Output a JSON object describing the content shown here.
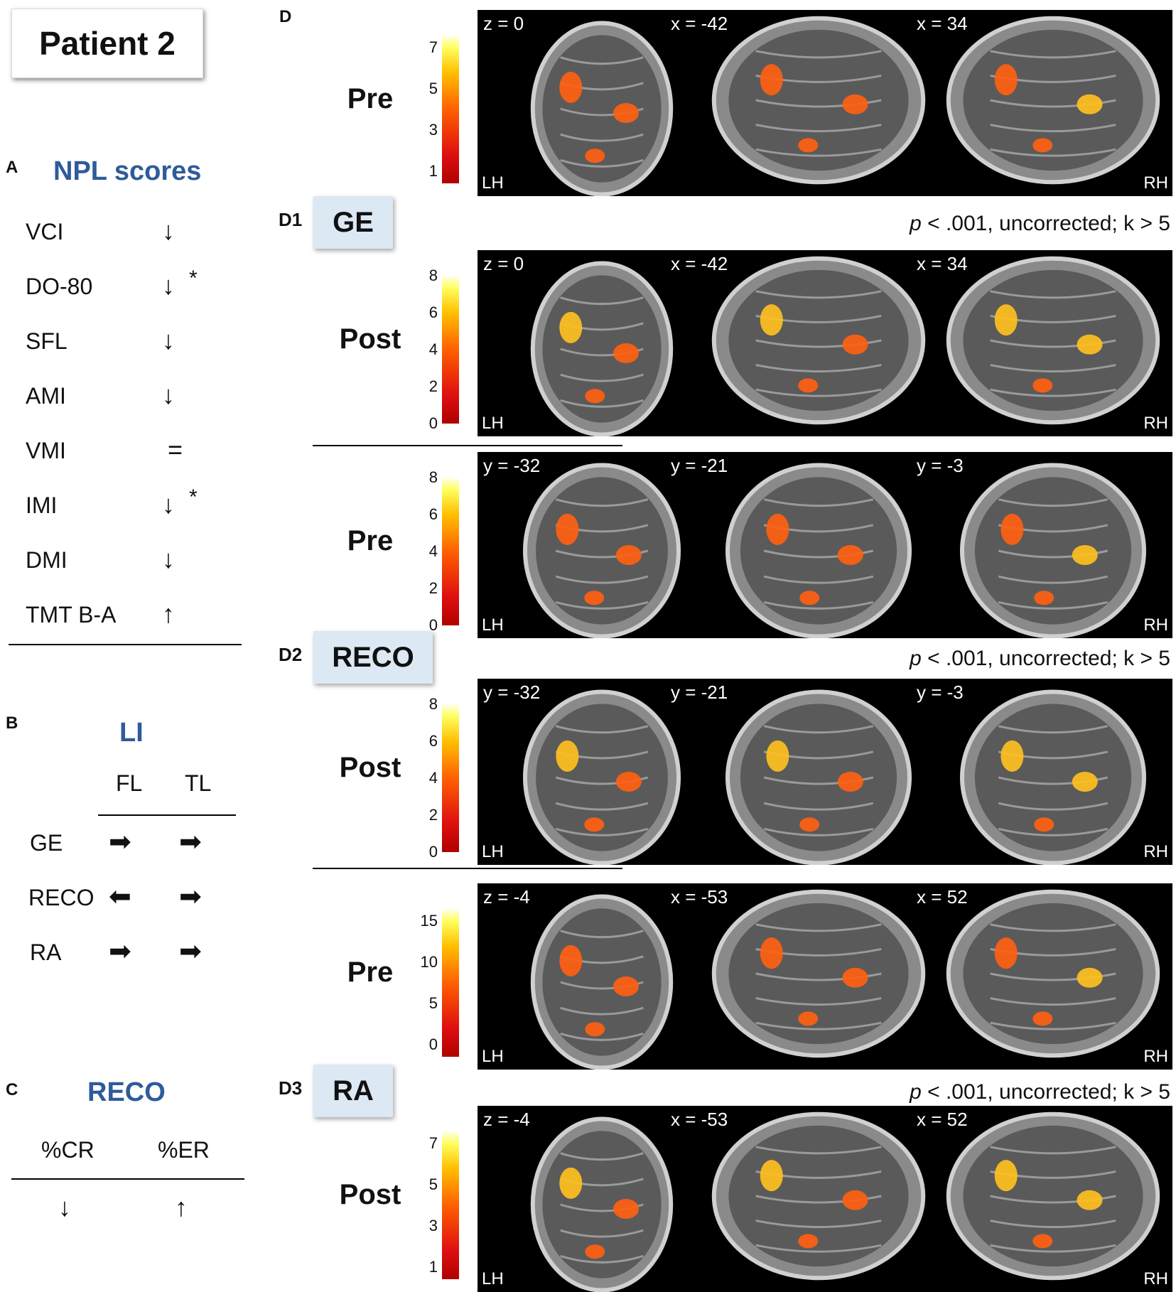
{
  "title": "Patient 2",
  "panelA": {
    "letter": "A",
    "heading": "NPL scores",
    "rows": [
      {
        "label": "VCI",
        "symbol": "↓",
        "mark": ""
      },
      {
        "label": "DO-80",
        "symbol": "↓",
        "mark": "*"
      },
      {
        "label": "SFL",
        "symbol": "↓",
        "mark": ""
      },
      {
        "label": "AMI",
        "symbol": "↓",
        "mark": ""
      },
      {
        "label": "VMI",
        "symbol": "=",
        "mark": ""
      },
      {
        "label": "IMI",
        "symbol": "↓",
        "mark": "*"
      },
      {
        "label": "DMI",
        "symbol": "↓",
        "mark": ""
      },
      {
        "label": "TMT B-A",
        "symbol": "↑",
        "mark": ""
      }
    ]
  },
  "panelB": {
    "letter": "B",
    "heading": "LI",
    "col1": "FL",
    "col2": "TL",
    "rows": [
      {
        "label": "GE",
        "fl": "➡",
        "tl": "➡"
      },
      {
        "label": "RECO",
        "fl": "⬅",
        "tl": "➡"
      },
      {
        "label": "RA",
        "fl": "➡",
        "tl": "➡"
      }
    ]
  },
  "panelC": {
    "letter": "C",
    "heading": "RECO",
    "col1": "%CR",
    "col2": "%ER",
    "val1": "↓",
    "val2": "↑"
  },
  "panelD": {
    "letter": "D",
    "stat_prefix": "p",
    "stat_rest": " < .001, uncorrected; k > 5",
    "hemi_left": "LH",
    "hemi_right": "RH",
    "sections": [
      {
        "letter": "D1",
        "task": "GE",
        "pre": {
          "label": "Pre",
          "ticks": [
            "7",
            "5",
            "3",
            "1"
          ],
          "slices": [
            "z = 0",
            "x = -42",
            "x = 34"
          ]
        },
        "post": {
          "label": "Post",
          "ticks": [
            "8",
            "6",
            "4",
            "2",
            "0"
          ],
          "slices": [
            "z = 0",
            "x = -42",
            "x = 34"
          ]
        }
      },
      {
        "letter": "D2",
        "task": "RECO",
        "pre": {
          "label": "Pre",
          "ticks": [
            "8",
            "6",
            "4",
            "2",
            "0"
          ],
          "slices": [
            "y = -32",
            "y = -21",
            "y = -3"
          ]
        },
        "post": {
          "label": "Post",
          "ticks": [
            "8",
            "6",
            "4",
            "2",
            "0"
          ],
          "slices": [
            "y = -32",
            "y = -21",
            "y = -3"
          ]
        }
      },
      {
        "letter": "D3",
        "task": "RA",
        "pre": {
          "label": "Pre",
          "ticks": [
            "15",
            "10",
            "5",
            "0"
          ],
          "slices": [
            "z = -4",
            "x = -53",
            "x = 52"
          ]
        },
        "post": {
          "label": "Post",
          "ticks": [
            "7",
            "5",
            "3",
            "1"
          ],
          "slices": [
            "z = -4",
            "x = -53",
            "x = 52"
          ]
        }
      }
    ]
  }
}
